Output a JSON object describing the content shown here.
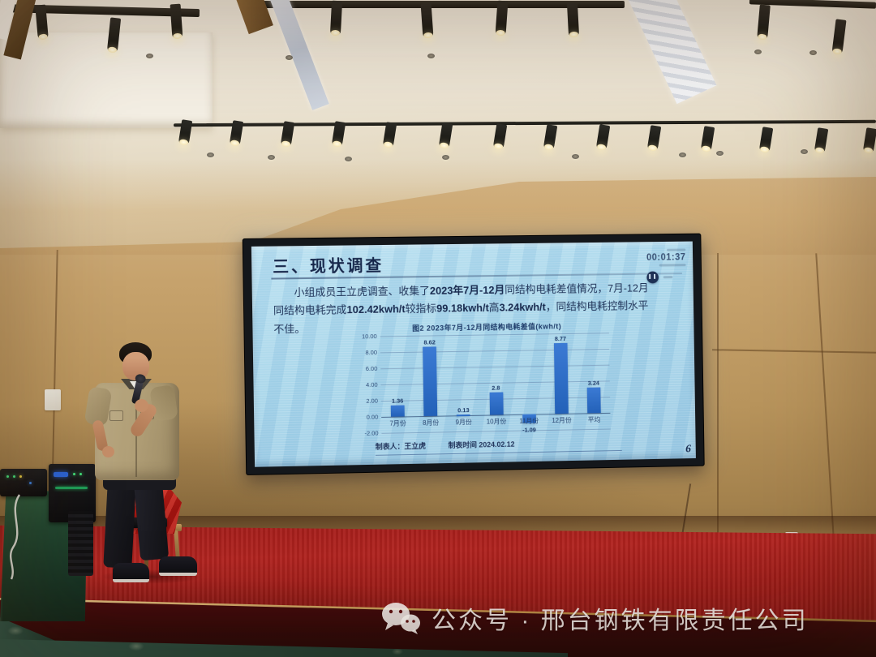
{
  "screen": {
    "slide": {
      "title": "三、现状调查",
      "paragraph_segments": [
        {
          "text": "小组成员王立虎调查、收集了",
          "bold": false
        },
        {
          "text": "2023年7月-12月",
          "bold": true
        },
        {
          "text": "同结构电耗差值情况，7月-12月同结构电耗完成",
          "bold": false
        },
        {
          "text": "102.42kwh/t",
          "bold": true
        },
        {
          "text": "较指标",
          "bold": false
        },
        {
          "text": "99.18kwh/t",
          "bold": true
        },
        {
          "text": "高",
          "bold": false
        },
        {
          "text": "3.24kwh/t",
          "bold": true
        },
        {
          "text": "，同结构电耗控制水平不佳。",
          "bold": false
        }
      ],
      "page_number": "6"
    },
    "timer": {
      "time": "00:01:37",
      "pause_icon": "❚❚"
    }
  },
  "chart_data": {
    "type": "bar",
    "title": "图2  2023年7月-12月同结构电耗差值(kwh/t)",
    "categories": [
      "7月份",
      "8月份",
      "9月份",
      "10月份",
      "11月份",
      "12月份",
      "平均"
    ],
    "values": [
      1.36,
      8.62,
      0.13,
      2.8,
      -1.09,
      8.77,
      3.24
    ],
    "value_labels": [
      "1.36",
      "8.62",
      "0.13",
      "2.8",
      "-1.09",
      "8.77",
      "3.24"
    ],
    "ylim": [
      -2,
      10
    ],
    "yticks": [
      10,
      8,
      6,
      4,
      2,
      0,
      -2
    ],
    "ytick_labels": [
      "10.00",
      "8.00",
      "6.00",
      "4.00",
      "2.00",
      "0.00",
      "-2.00"
    ],
    "xlabel": "",
    "ylabel": "",
    "grid": true,
    "legend_position": "none",
    "bar_color": "#2b6cc8",
    "footer_left": "制表人：王立虎",
    "footer_right": "制表时间 2024.02.12"
  },
  "watermark": {
    "icon": "wechat-icon",
    "text": "公众号 · 邢台钢铁有限责任公司"
  },
  "colors": {
    "slide_background": "#a9d6ea",
    "slide_text": "#1e3358",
    "bar_blue": "#2b6cc8",
    "carpet_red": "#a81e1c",
    "wall_wood": "#bf9c66",
    "stage_fascia": "#45090c",
    "tablecloth_green": "#1f4630"
  }
}
